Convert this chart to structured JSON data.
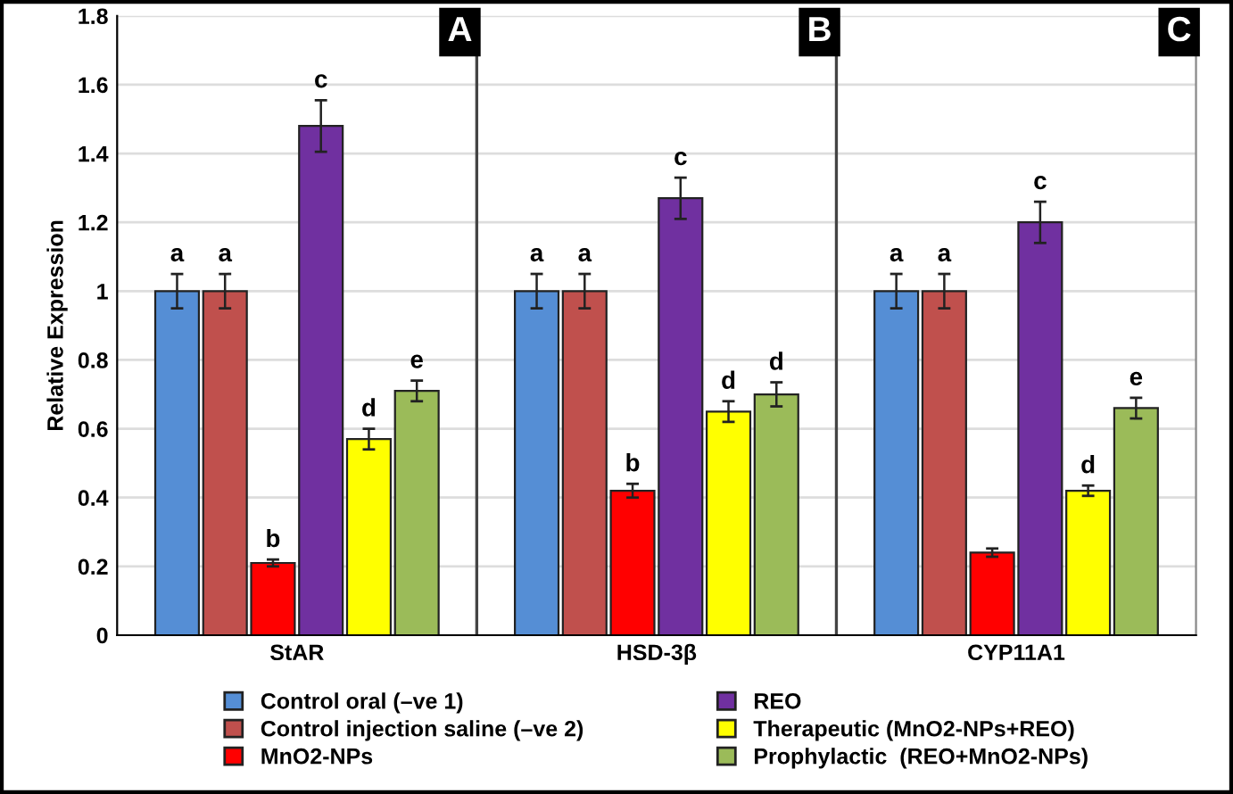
{
  "chart_data": {
    "type": "bar",
    "ylabel": "Relative Expression",
    "categories": [
      "StAR",
      "HSD-3β",
      "CYP11A1"
    ],
    "series": [
      {
        "name": "Control oral (–ve 1)",
        "color": "#558ed5",
        "values": [
          1,
          1,
          1
        ],
        "errors": [
          0.05,
          0.05,
          0.05
        ],
        "value_labels": [
          "a",
          "a",
          "a"
        ]
      },
      {
        "name": "Control injection saline (–ve 2)",
        "color": "#c0504d",
        "values": [
          1,
          1,
          1
        ],
        "errors": [
          0.05,
          0.05,
          0.05
        ],
        "value_labels": [
          "a",
          "a",
          "a"
        ]
      },
      {
        "name": "MnO2-NPs",
        "color": "#ff0000",
        "values": [
          0.21,
          0.42,
          0.24
        ],
        "errors": [
          0.01,
          0.02,
          0.012
        ],
        "value_labels": [
          "b",
          "b",
          null
        ]
      },
      {
        "name": "REO",
        "color": "#7030a0",
        "values": [
          1.48,
          1.27,
          1.2
        ],
        "errors": [
          0.075,
          0.06,
          0.06
        ],
        "value_labels": [
          "c",
          "c",
          "c"
        ]
      },
      {
        "name": "Therapeutic (MnO2-NPs+REO)",
        "color": "#ffff00",
        "values": [
          0.57,
          0.65,
          0.42
        ],
        "errors": [
          0.03,
          0.03,
          0.015
        ],
        "value_labels": [
          "d",
          "d",
          "d"
        ]
      },
      {
        "name": "Prophylactic  (REO+MnO2-NPs)",
        "color": "#9bbb59",
        "values": [
          0.71,
          0.7,
          0.66
        ],
        "errors": [
          0.03,
          0.035,
          0.03
        ],
        "value_labels": [
          "e",
          "d",
          "e"
        ]
      }
    ],
    "annotations": [
      "A",
      "B",
      "C"
    ],
    "ylim": [
      0,
      1.8
    ],
    "yticks": [
      0,
      0.2,
      0.4,
      0.6,
      0.8,
      1,
      1.2,
      1.4,
      1.6,
      1.8
    ],
    "grid": "y",
    "legend": "bottom"
  }
}
